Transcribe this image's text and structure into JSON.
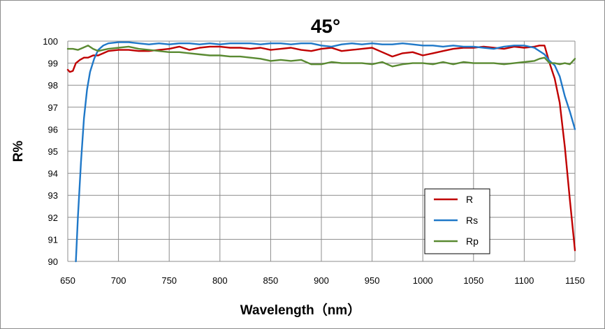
{
  "chart_data": {
    "type": "line",
    "title": "45°",
    "xlabel": "Wavelength（nm）",
    "ylabel": "R%",
    "xlim": [
      650,
      1150
    ],
    "ylim": [
      90,
      100
    ],
    "x_ticks": [
      650,
      700,
      750,
      800,
      850,
      900,
      950,
      1000,
      1050,
      1100,
      1150
    ],
    "y_ticks": [
      90,
      91,
      92,
      93,
      94,
      95,
      96,
      97,
      98,
      99,
      100
    ],
    "grid": true,
    "legend_position": "lower-right",
    "series": [
      {
        "name": "R",
        "color": "#c00000",
        "x": [
          650,
          652,
          655,
          658,
          662,
          666,
          670,
          675,
          680,
          685,
          690,
          700,
          710,
          720,
          730,
          740,
          750,
          760,
          770,
          780,
          790,
          800,
          810,
          820,
          830,
          840,
          850,
          860,
          870,
          880,
          890,
          900,
          910,
          920,
          930,
          940,
          950,
          960,
          970,
          980,
          990,
          1000,
          1010,
          1020,
          1030,
          1040,
          1050,
          1060,
          1070,
          1080,
          1090,
          1100,
          1110,
          1115,
          1120,
          1125,
          1130,
          1135,
          1140,
          1145,
          1150
        ],
        "y": [
          98.7,
          98.6,
          98.65,
          99.0,
          99.15,
          99.25,
          99.25,
          99.35,
          99.35,
          99.45,
          99.55,
          99.6,
          99.6,
          99.55,
          99.55,
          99.6,
          99.65,
          99.75,
          99.6,
          99.7,
          99.75,
          99.75,
          99.7,
          99.7,
          99.65,
          99.7,
          99.6,
          99.65,
          99.7,
          99.6,
          99.55,
          99.65,
          99.7,
          99.55,
          99.6,
          99.65,
          99.7,
          99.5,
          99.3,
          99.45,
          99.5,
          99.35,
          99.45,
          99.55,
          99.65,
          99.7,
          99.7,
          99.75,
          99.7,
          99.65,
          99.75,
          99.7,
          99.75,
          99.8,
          99.8,
          99.0,
          98.3,
          97.2,
          95.2,
          92.8,
          90.5
        ]
      },
      {
        "name": "Rs",
        "color": "#1f78c8",
        "x": [
          658,
          660,
          663,
          666,
          669,
          672,
          676,
          680,
          685,
          690,
          700,
          710,
          720,
          730,
          740,
          750,
          760,
          770,
          780,
          790,
          800,
          810,
          820,
          830,
          840,
          850,
          860,
          870,
          880,
          890,
          900,
          910,
          920,
          930,
          940,
          950,
          960,
          970,
          980,
          990,
          1000,
          1010,
          1020,
          1030,
          1040,
          1050,
          1060,
          1070,
          1080,
          1090,
          1100,
          1110,
          1120,
          1125,
          1130,
          1135,
          1140,
          1145,
          1150
        ],
        "y": [
          90.0,
          92.0,
          94.5,
          96.5,
          97.8,
          98.6,
          99.2,
          99.6,
          99.8,
          99.9,
          99.95,
          99.95,
          99.9,
          99.85,
          99.9,
          99.85,
          99.9,
          99.9,
          99.85,
          99.9,
          99.85,
          99.9,
          99.9,
          99.9,
          99.85,
          99.9,
          99.9,
          99.85,
          99.9,
          99.9,
          99.8,
          99.75,
          99.85,
          99.9,
          99.85,
          99.9,
          99.85,
          99.85,
          99.9,
          99.85,
          99.8,
          99.8,
          99.75,
          99.8,
          99.75,
          99.75,
          99.7,
          99.65,
          99.75,
          99.8,
          99.8,
          99.7,
          99.4,
          99.1,
          98.9,
          98.4,
          97.5,
          96.8,
          96.0
        ]
      },
      {
        "name": "Rp",
        "color": "#5a8a32",
        "x": [
          650,
          655,
          660,
          665,
          670,
          675,
          680,
          685,
          690,
          700,
          710,
          720,
          730,
          740,
          750,
          760,
          770,
          780,
          790,
          800,
          810,
          820,
          830,
          840,
          850,
          860,
          870,
          880,
          890,
          900,
          910,
          920,
          930,
          940,
          950,
          960,
          970,
          980,
          990,
          1000,
          1010,
          1020,
          1030,
          1040,
          1050,
          1060,
          1070,
          1080,
          1090,
          1100,
          1110,
          1115,
          1120,
          1125,
          1130,
          1135,
          1140,
          1145,
          1150
        ],
        "y": [
          99.65,
          99.65,
          99.6,
          99.7,
          99.8,
          99.65,
          99.55,
          99.6,
          99.65,
          99.7,
          99.75,
          99.65,
          99.6,
          99.55,
          99.5,
          99.5,
          99.45,
          99.4,
          99.35,
          99.35,
          99.3,
          99.3,
          99.25,
          99.2,
          99.1,
          99.15,
          99.1,
          99.15,
          98.95,
          98.95,
          99.05,
          99.0,
          99.0,
          99.0,
          98.95,
          99.05,
          98.85,
          98.95,
          99.0,
          99.0,
          98.95,
          99.05,
          98.95,
          99.05,
          99.0,
          99.0,
          99.0,
          98.95,
          99.0,
          99.05,
          99.1,
          99.2,
          99.25,
          99.0,
          99.0,
          98.95,
          99.0,
          98.95,
          99.2
        ]
      }
    ]
  }
}
